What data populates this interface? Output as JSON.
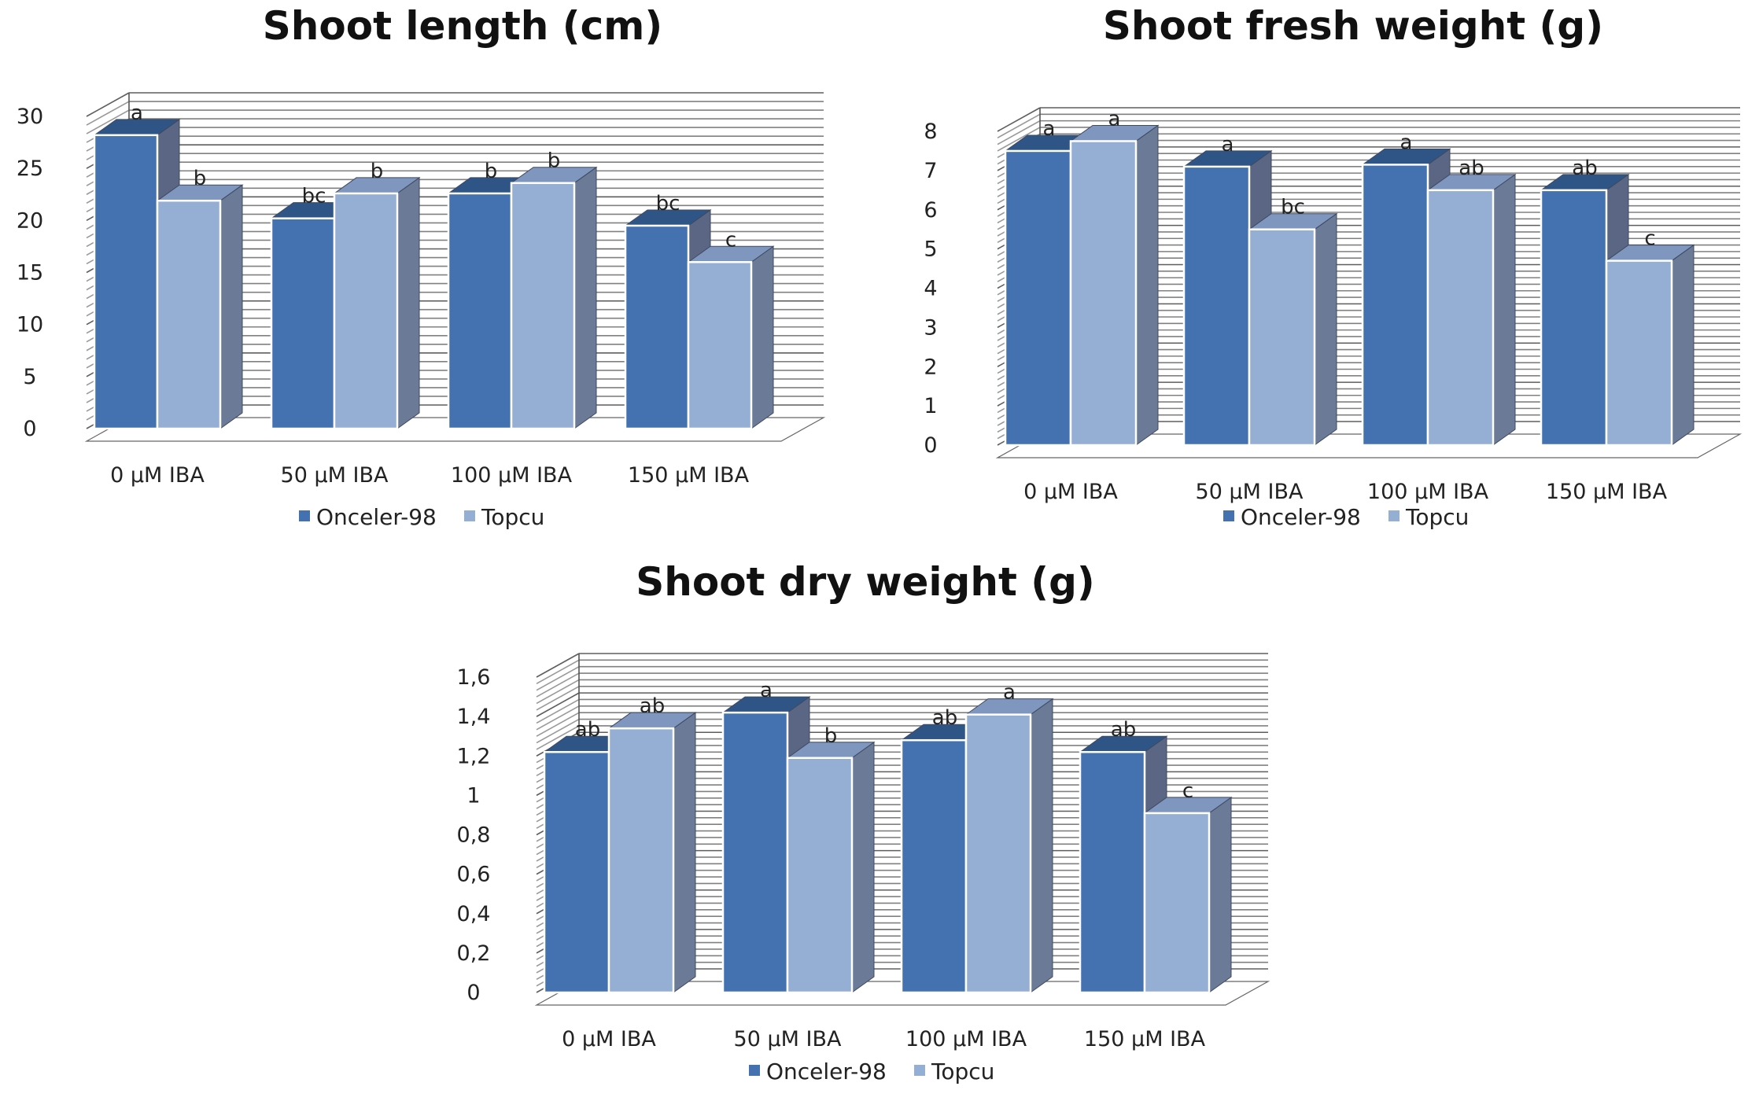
{
  "colors": {
    "series_front": [
      "#4472b0",
      "#95aed4"
    ],
    "series_side": [
      "#5a6683",
      "#6b7a97"
    ],
    "series_top": [
      "#2f5486",
      "#7f96bf"
    ],
    "text": "#222222"
  },
  "chart_data": [
    {
      "type": "bar",
      "title": "Shoot length (cm)",
      "categories": [
        "0 µM IBA",
        "50 µM IBA",
        "100 µM IBA",
        "150 µM IBA"
      ],
      "yticks": [
        "0",
        "5",
        "10",
        "15",
        "20",
        "25",
        "30"
      ],
      "ylim": [
        0,
        30
      ],
      "grid": true,
      "legend": "bottom",
      "series": [
        {
          "name": "Onceler-98",
          "values": [
            28.2,
            20.2,
            22.6,
            19.5
          ],
          "labels": [
            "a",
            "bc",
            "b",
            "bc"
          ]
        },
        {
          "name": "Topcu",
          "values": [
            21.9,
            22.6,
            23.6,
            16.0
          ],
          "labels": [
            "b",
            "b",
            "b",
            "c"
          ]
        }
      ]
    },
    {
      "type": "bar",
      "title": "Shoot fresh weight (g)",
      "categories": [
        "0 µM IBA",
        "50 µM IBA",
        "100 µM IBA",
        "150 µM IBA"
      ],
      "yticks": [
        "0",
        "1",
        "2",
        "3",
        "4",
        "5",
        "6",
        "7",
        "8"
      ],
      "ylim": [
        0,
        8
      ],
      "grid": true,
      "legend": "bottom",
      "series": [
        {
          "name": "Onceler-98",
          "values": [
            7.5,
            7.1,
            7.15,
            6.5
          ],
          "labels": [
            "a",
            "a",
            "a",
            "ab"
          ]
        },
        {
          "name": "Topcu",
          "values": [
            7.75,
            5.5,
            6.5,
            4.7
          ],
          "labels": [
            "a",
            "bc",
            "ab",
            "c"
          ]
        }
      ]
    },
    {
      "type": "bar",
      "title": "Shoot dry weight (g)",
      "categories": [
        "0 µM IBA",
        "50 µM IBA",
        "100 µM IBA",
        "150 µM IBA"
      ],
      "yticks": [
        "0",
        "0,2",
        "0,4",
        "0,6",
        "0,8",
        "1",
        "1,2",
        "1,4",
        "1,6"
      ],
      "ylim": [
        0,
        1.6
      ],
      "grid": true,
      "legend": "bottom",
      "series": [
        {
          "name": "Onceler-98",
          "values": [
            1.22,
            1.42,
            1.28,
            1.22
          ],
          "labels": [
            "ab",
            "a",
            "ab",
            "ab"
          ]
        },
        {
          "name": "Topcu",
          "values": [
            1.34,
            1.19,
            1.41,
            0.91
          ],
          "labels": [
            "ab",
            "b",
            "a",
            "c"
          ]
        }
      ]
    }
  ]
}
